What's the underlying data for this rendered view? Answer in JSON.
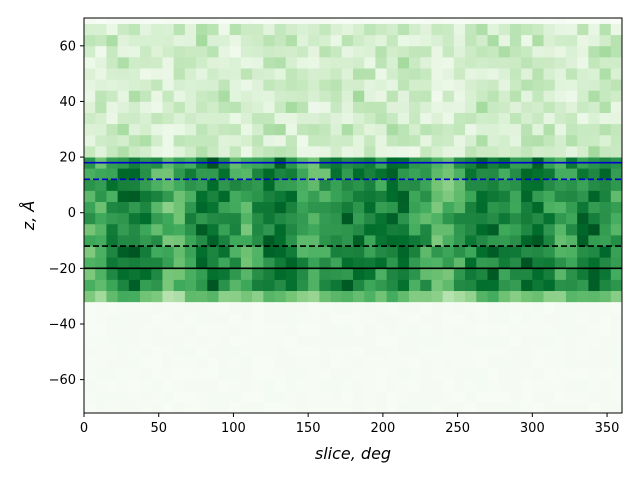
{
  "chart_data": {
    "type": "heatmap",
    "title": "",
    "xlabel": "slice, deg",
    "ylabel": "z, Å",
    "xlim": [
      0,
      360
    ],
    "ylim": [
      -72,
      70
    ],
    "xticks": [
      0,
      50,
      100,
      150,
      200,
      250,
      300,
      350
    ],
    "yticks": [
      -60,
      -40,
      -20,
      0,
      20,
      40,
      60
    ],
    "colormap": "Greens",
    "x_bin_width_deg": 7.5,
    "z_bin_height": 4,
    "membrane_band_z": [
      -32,
      22
    ],
    "upper_region_z": [
      22,
      70
    ],
    "reference_lines": [
      {
        "name": "",
        "y": 18,
        "color": "#0000cc",
        "style": "solid"
      },
      {
        "name": "",
        "y": 12,
        "color": "#0000cc",
        "style": "dashed"
      },
      {
        "name": "",
        "y": -12,
        "color": "#000000",
        "style": "dashed"
      },
      {
        "name": "",
        "y": -20,
        "color": "#000000",
        "style": "solid"
      }
    ],
    "dense_columns_deg": [
      30,
      85,
      130,
      180,
      210,
      270,
      300,
      340
    ]
  }
}
